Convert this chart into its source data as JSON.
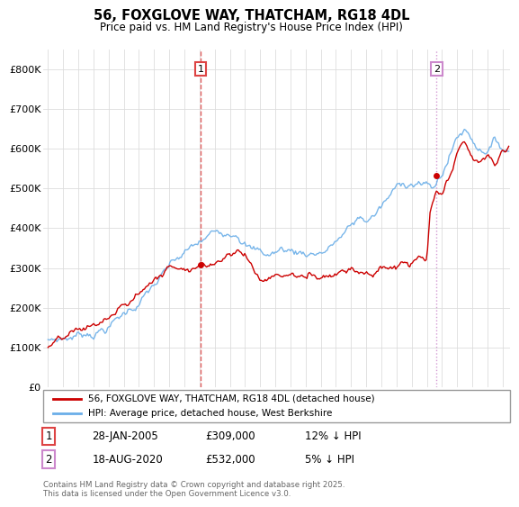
{
  "title": "56, FOXGLOVE WAY, THATCHAM, RG18 4DL",
  "subtitle": "Price paid vs. HM Land Registry's House Price Index (HPI)",
  "ylabel_ticks": [
    "£0",
    "£100K",
    "£200K",
    "£300K",
    "£400K",
    "£500K",
    "£600K",
    "£700K",
    "£800K"
  ],
  "ytick_values": [
    0,
    100000,
    200000,
    300000,
    400000,
    500000,
    600000,
    700000,
    800000
  ],
  "ylim": [
    0,
    850000
  ],
  "xlim_start": 1994.7,
  "xlim_end": 2025.5,
  "hpi_color": "#6aaee8",
  "price_color": "#cc0000",
  "vline1_color": "#dd4444",
  "vline2_color": "#cc88cc",
  "marker1_year": 2005.07,
  "marker1_price": 309000,
  "marker2_year": 2020.63,
  "marker2_price": 532000,
  "legend_line1": "56, FOXGLOVE WAY, THATCHAM, RG18 4DL (detached house)",
  "legend_line2": "HPI: Average price, detached house, West Berkshire",
  "table_row1": [
    "1",
    "28-JAN-2005",
    "£309,000",
    "12% ↓ HPI"
  ],
  "table_row2": [
    "2",
    "18-AUG-2020",
    "£532,000",
    "5% ↓ HPI"
  ],
  "footnote": "Contains HM Land Registry data © Crown copyright and database right 2025.\nThis data is licensed under the Open Government Licence v3.0.",
  "background_color": "#ffffff",
  "grid_color": "#dddddd",
  "hpi_anchors": [
    [
      1995.0,
      120000
    ],
    [
      1996.0,
      128000
    ],
    [
      1997.0,
      140000
    ],
    [
      1998.0,
      155000
    ],
    [
      1999.0,
      175000
    ],
    [
      2000.0,
      205000
    ],
    [
      2001.0,
      240000
    ],
    [
      2002.0,
      280000
    ],
    [
      2003.0,
      315000
    ],
    [
      2004.0,
      340000
    ],
    [
      2005.0,
      360000
    ],
    [
      2006.0,
      380000
    ],
    [
      2007.0,
      400000
    ],
    [
      2007.5,
      415000
    ],
    [
      2008.5,
      375000
    ],
    [
      2009.5,
      360000
    ],
    [
      2010.5,
      375000
    ],
    [
      2011.5,
      370000
    ],
    [
      2012.5,
      375000
    ],
    [
      2013.5,
      390000
    ],
    [
      2014.0,
      410000
    ],
    [
      2015.0,
      440000
    ],
    [
      2015.5,
      460000
    ],
    [
      2016.0,
      455000
    ],
    [
      2016.5,
      470000
    ],
    [
      2017.0,
      490000
    ],
    [
      2017.5,
      510000
    ],
    [
      2018.0,
      530000
    ],
    [
      2018.5,
      545000
    ],
    [
      2019.0,
      555000
    ],
    [
      2019.5,
      560000
    ],
    [
      2020.0,
      545000
    ],
    [
      2020.5,
      535000
    ],
    [
      2021.0,
      575000
    ],
    [
      2021.5,
      620000
    ],
    [
      2022.0,
      670000
    ],
    [
      2022.5,
      690000
    ],
    [
      2023.0,
      670000
    ],
    [
      2023.5,
      650000
    ],
    [
      2024.0,
      660000
    ],
    [
      2024.5,
      675000
    ],
    [
      2025.0,
      660000
    ],
    [
      2025.4,
      655000
    ]
  ],
  "price_anchors": [
    [
      1995.0,
      100000
    ],
    [
      1996.0,
      108000
    ],
    [
      1997.0,
      118000
    ],
    [
      1998.0,
      130000
    ],
    [
      1999.0,
      148000
    ],
    [
      2000.0,
      172000
    ],
    [
      2001.0,
      205000
    ],
    [
      2002.0,
      245000
    ],
    [
      2003.0,
      275000
    ],
    [
      2004.0,
      290000
    ],
    [
      2005.07,
      309000
    ],
    [
      2005.5,
      305000
    ],
    [
      2006.0,
      320000
    ],
    [
      2007.0,
      355000
    ],
    [
      2007.5,
      370000
    ],
    [
      2008.0,
      355000
    ],
    [
      2009.0,
      295000
    ],
    [
      2010.0,
      310000
    ],
    [
      2011.0,
      315000
    ],
    [
      2012.0,
      305000
    ],
    [
      2013.0,
      315000
    ],
    [
      2014.0,
      335000
    ],
    [
      2015.0,
      360000
    ],
    [
      2015.5,
      355000
    ],
    [
      2016.0,
      360000
    ],
    [
      2016.5,
      355000
    ],
    [
      2017.0,
      365000
    ],
    [
      2018.0,
      370000
    ],
    [
      2018.5,
      375000
    ],
    [
      2019.0,
      370000
    ],
    [
      2019.5,
      380000
    ],
    [
      2020.0,
      370000
    ],
    [
      2020.2,
      480000
    ],
    [
      2020.63,
      532000
    ],
    [
      2021.0,
      520000
    ],
    [
      2021.5,
      555000
    ],
    [
      2022.0,
      610000
    ],
    [
      2022.5,
      635000
    ],
    [
      2023.0,
      600000
    ],
    [
      2023.5,
      580000
    ],
    [
      2024.0,
      600000
    ],
    [
      2024.5,
      580000
    ],
    [
      2025.0,
      610000
    ],
    [
      2025.4,
      620000
    ]
  ]
}
